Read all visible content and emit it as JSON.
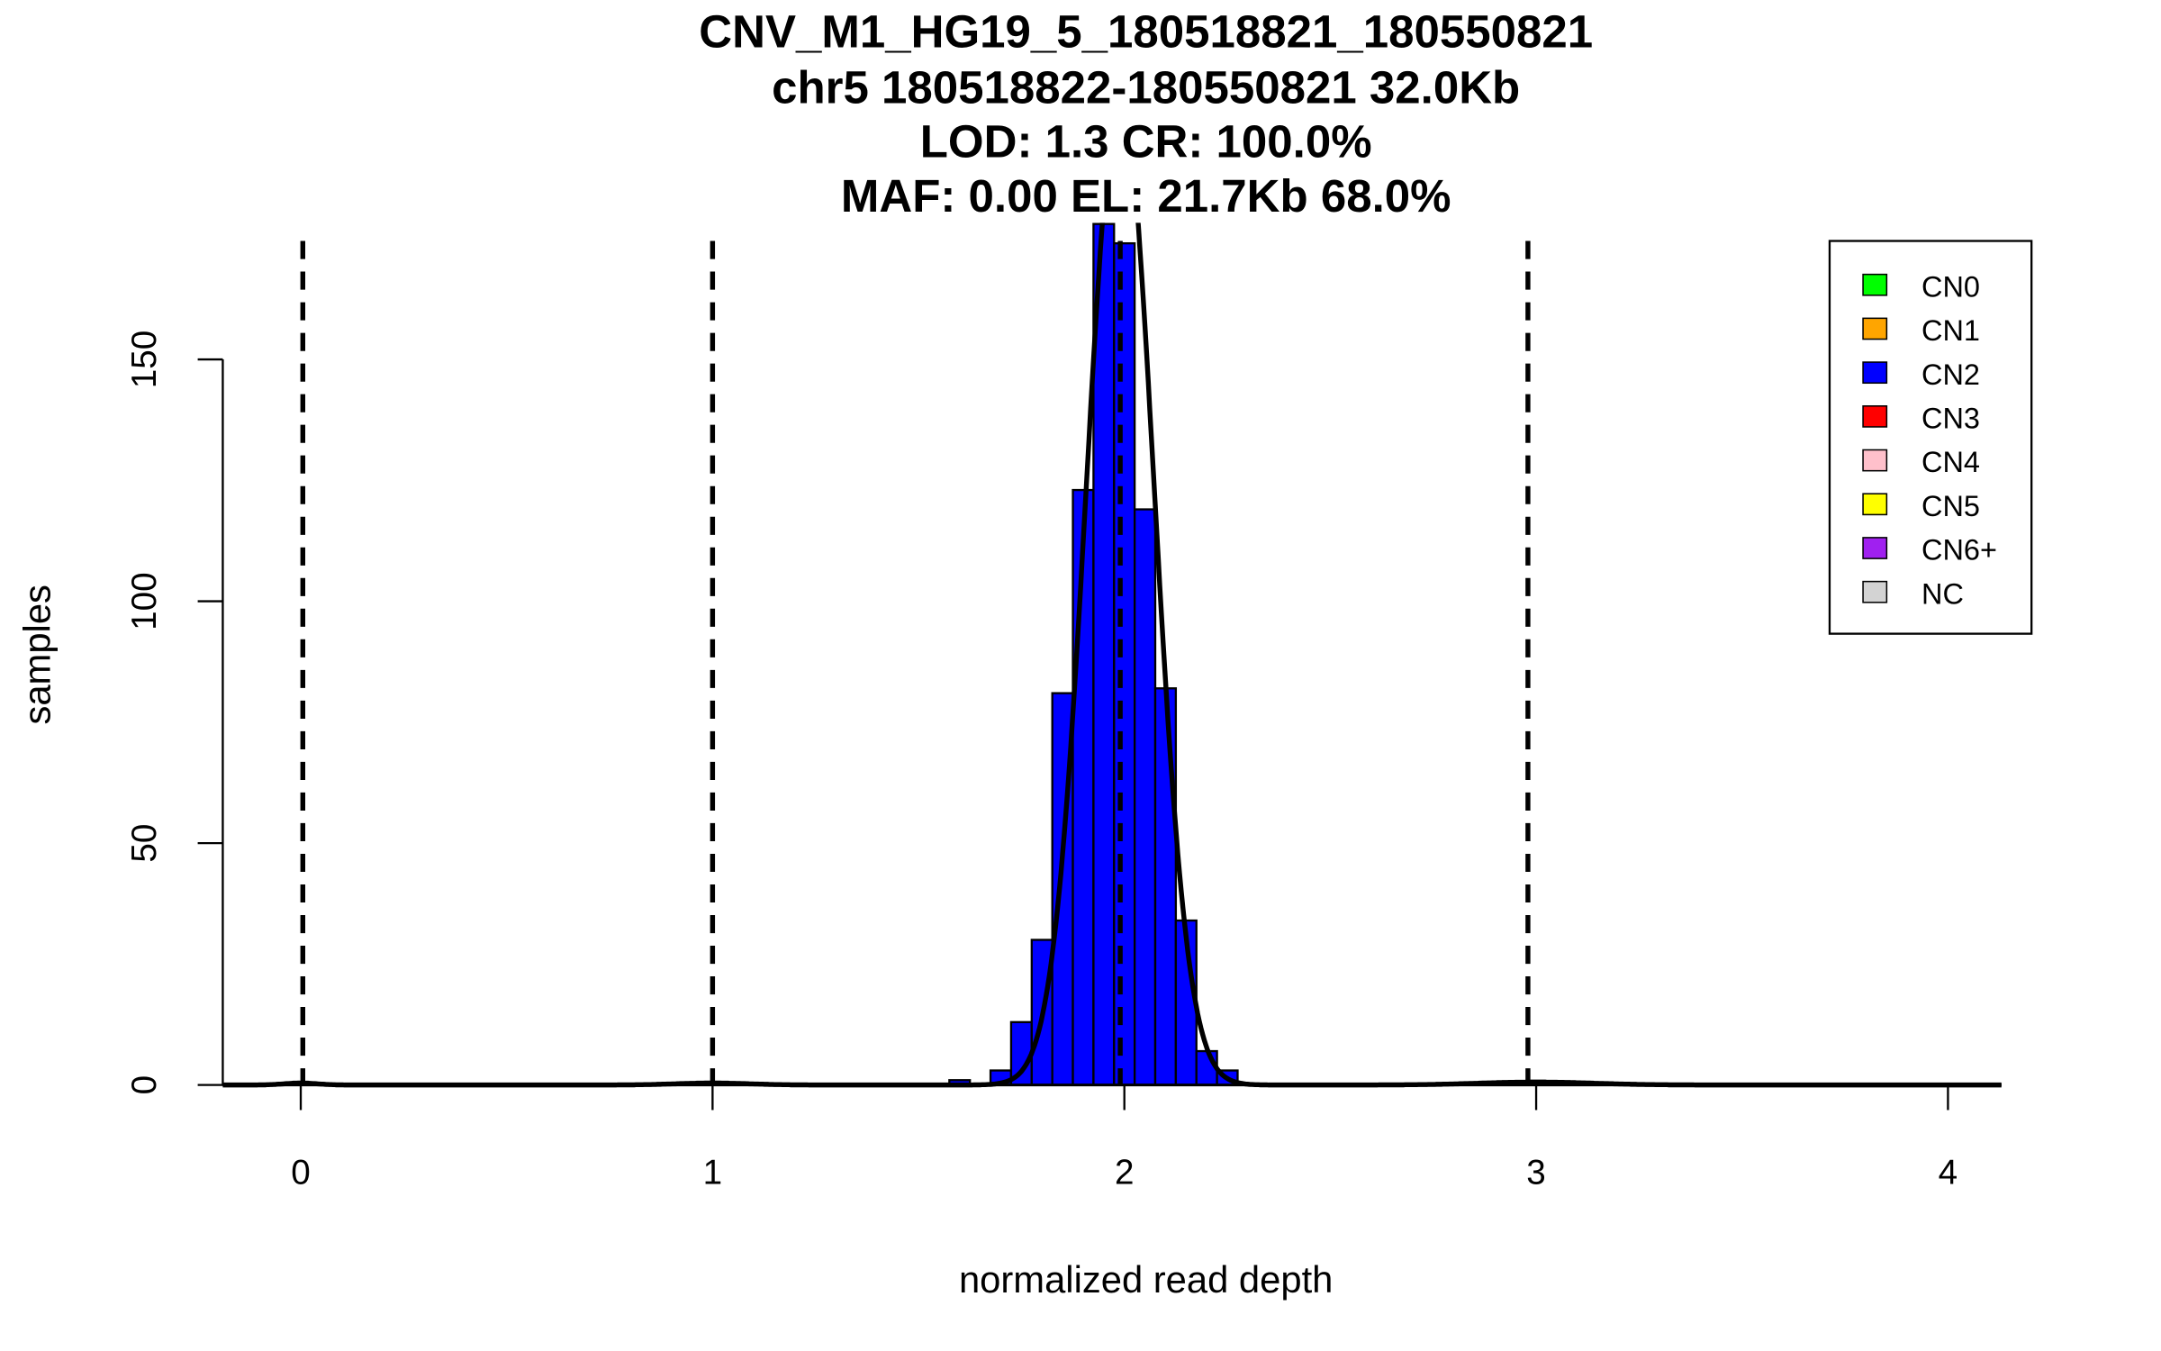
{
  "chart_data": {
    "type": "bar",
    "title_lines": [
      "CNV_M1_HG19_5_180518821_180550821",
      "chr5 180518822-180550821 32.0Kb",
      "LOD: 1.3 CR: 100.0%",
      "MAF: 0.00 EL: 21.7Kb 68.0%"
    ],
    "xlabel": "normalized read depth",
    "ylabel": "samples",
    "xlim": [
      -0.19,
      4.13
    ],
    "ylim": [
      0,
      178
    ],
    "xticks": [
      "0",
      "1",
      "2",
      "3",
      "4"
    ],
    "yticks": [
      "0",
      "50",
      "100",
      "150"
    ],
    "bin_width": 0.05,
    "bins": [
      {
        "start": 1.575,
        "count": 1
      },
      {
        "start": 1.625,
        "count": 0
      },
      {
        "start": 1.675,
        "count": 3
      },
      {
        "start": 1.725,
        "count": 13
      },
      {
        "start": 1.775,
        "count": 30
      },
      {
        "start": 1.825,
        "count": 81
      },
      {
        "start": 1.875,
        "count": 123
      },
      {
        "start": 1.925,
        "count": 178
      },
      {
        "start": 1.975,
        "count": 174
      },
      {
        "start": 2.025,
        "count": 119
      },
      {
        "start": 2.075,
        "count": 82
      },
      {
        "start": 2.125,
        "count": 34
      },
      {
        "start": 2.175,
        "count": 7
      },
      {
        "start": 2.225,
        "count": 3
      }
    ],
    "bar_color": "#0000FF",
    "dashed_lines_x": [
      0.005,
      1.0,
      1.99,
      2.98
    ],
    "fit_components": [
      {
        "mean": 0.0,
        "sd": 0.04,
        "peak": 0.4
      },
      {
        "mean": 1.0,
        "sd": 0.09,
        "peak": 0.4
      },
      {
        "mean": 1.99,
        "sd": 0.082,
        "peak": 205
      },
      {
        "mean": 3.0,
        "sd": 0.14,
        "peak": 0.6
      }
    ],
    "legend": {
      "position": "top-right",
      "entries": [
        {
          "label": "CN0",
          "color": "#00FF00"
        },
        {
          "label": "CN1",
          "color": "#FFA500"
        },
        {
          "label": "CN2",
          "color": "#0000FF"
        },
        {
          "label": "CN3",
          "color": "#FF0000"
        },
        {
          "label": "CN4",
          "color": "#FFC0CB"
        },
        {
          "label": "CN5",
          "color": "#FFFF00"
        },
        {
          "label": "CN6+",
          "color": "#A020F0"
        },
        {
          "label": "NC",
          "color": "#D3D3D3"
        }
      ]
    }
  }
}
